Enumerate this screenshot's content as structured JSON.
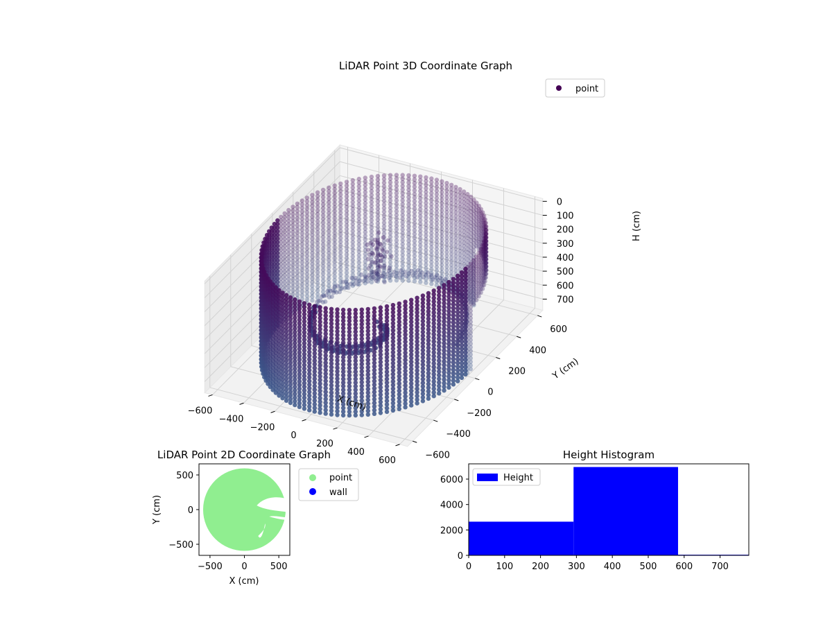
{
  "chart_data": [
    {
      "type": "scatter3d",
      "title": "LiDAR Point 3D Coordinate Graph",
      "xlabel": "X (cm)",
      "ylabel": "Y (cm)",
      "zlabel": "H (cm)",
      "xticks": [
        -600,
        -400,
        -200,
        0,
        200,
        400,
        600
      ],
      "yticks": [
        -600,
        -400,
        -200,
        0,
        200,
        400,
        600
      ],
      "zticks": [
        0,
        100,
        200,
        300,
        400,
        500,
        600,
        700
      ],
      "xlim": [
        -650,
        650
      ],
      "ylim": [
        -650,
        650
      ],
      "zlim": [
        780,
        -20
      ],
      "z_inverted": true,
      "grid": true,
      "legend": {
        "position": "top-right",
        "entries": [
          {
            "label": "point",
            "color": "#440154"
          }
        ]
      },
      "description_of_shape": "cylindrical wall ring of radius ~600 cm spanning H 0–780, with a floor cluster and a raised object near center",
      "colormap": "viridis"
    },
    {
      "type": "scatter",
      "title": "LiDAR Point 2D Coordinate Graph",
      "xlabel": "X (cm)",
      "ylabel": "Y (cm)",
      "xticks": [
        -500,
        0,
        500
      ],
      "yticks": [
        500,
        0,
        -500
      ],
      "xlim": [
        -660,
        660
      ],
      "ylim": [
        -660,
        660
      ],
      "legend": {
        "position": "outside-right",
        "entries": [
          {
            "label": "point",
            "color": "#90ee90"
          },
          {
            "label": "wall",
            "color": "#0000ff"
          }
        ]
      }
    },
    {
      "type": "bar",
      "title": "Height Histogram",
      "xticks": [
        0,
        100,
        200,
        300,
        400,
        500,
        600,
        700
      ],
      "yticks": [
        0,
        2000,
        4000,
        6000
      ],
      "xlim": [
        0,
        780
      ],
      "ylim": [
        0,
        7200
      ],
      "bins": [
        {
          "start": 0,
          "end": 292,
          "value": 2650
        },
        {
          "start": 292,
          "end": 583,
          "value": 6950
        },
        {
          "start": 583,
          "end": 780,
          "value": 50
        }
      ],
      "color": "#0000ff",
      "legend": {
        "position": "top-left",
        "entries": [
          {
            "label": "Height",
            "color": "#0000ff"
          }
        ]
      }
    }
  ]
}
